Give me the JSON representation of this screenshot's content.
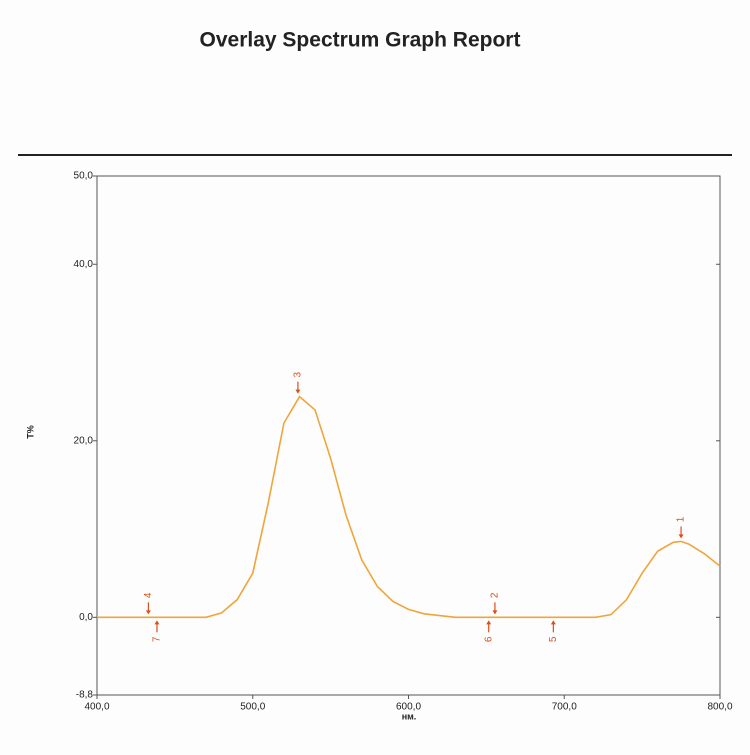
{
  "chart_data": {
    "type": "line",
    "title": "Overlay Spectrum Graph Report",
    "x_label": "нм.",
    "y_label": "T%",
    "x": [
      400,
      410,
      420,
      430,
      440,
      450,
      460,
      470,
      480,
      490,
      500,
      510,
      520,
      530,
      540,
      550,
      560,
      570,
      580,
      590,
      600,
      610,
      620,
      630,
      640,
      650,
      660,
      670,
      680,
      690,
      700,
      710,
      720,
      730,
      740,
      750,
      760,
      770,
      775,
      780,
      790,
      800
    ],
    "values": [
      0,
      0,
      0,
      0,
      0,
      0,
      0,
      0,
      0.5,
      2,
      5,
      13,
      22,
      25,
      23.5,
      18,
      11.5,
      6.5,
      3.5,
      1.8,
      0.9,
      0.4,
      0.2,
      0,
      0,
      0,
      0,
      0,
      0,
      0,
      0,
      0,
      0,
      0.3,
      2,
      5,
      7.5,
      8.5,
      8.6,
      8.3,
      7.2,
      5.8
    ],
    "color": "#f0a53a",
    "xlim": [
      400,
      800
    ],
    "ylim": [
      -8.8,
      50
    ],
    "xticks": [
      {
        "value": 400,
        "label": "400,0"
      },
      {
        "value": 500,
        "label": "500,0"
      },
      {
        "value": 600,
        "label": "600,0"
      },
      {
        "value": 700,
        "label": "700,0"
      },
      {
        "value": 800,
        "label": "800,0"
      }
    ],
    "yticks": [
      {
        "value": -8.8,
        "label": "-8,8"
      },
      {
        "value": 0,
        "label": "0,0"
      },
      {
        "value": 20,
        "label": "20,0"
      },
      {
        "value": 40,
        "label": "40,0"
      },
      {
        "value": 50,
        "label": "50,0"
      }
    ],
    "marker_color": "#d8501c",
    "markers": [
      {
        "label": "1",
        "x": 775,
        "y": 8.6,
        "side": "above"
      },
      {
        "label": "2",
        "x": 655.5,
        "y": 0,
        "side": "above"
      },
      {
        "label": "3",
        "x": 529,
        "y": 25,
        "side": "above"
      },
      {
        "label": "4",
        "x": 433,
        "y": 0,
        "side": "above"
      },
      {
        "label": "5",
        "x": 693,
        "y": 0,
        "side": "below"
      },
      {
        "label": "6",
        "x": 651.5,
        "y": 0,
        "side": "below"
      },
      {
        "label": "7",
        "x": 438.5,
        "y": 0,
        "side": "below"
      }
    ]
  }
}
